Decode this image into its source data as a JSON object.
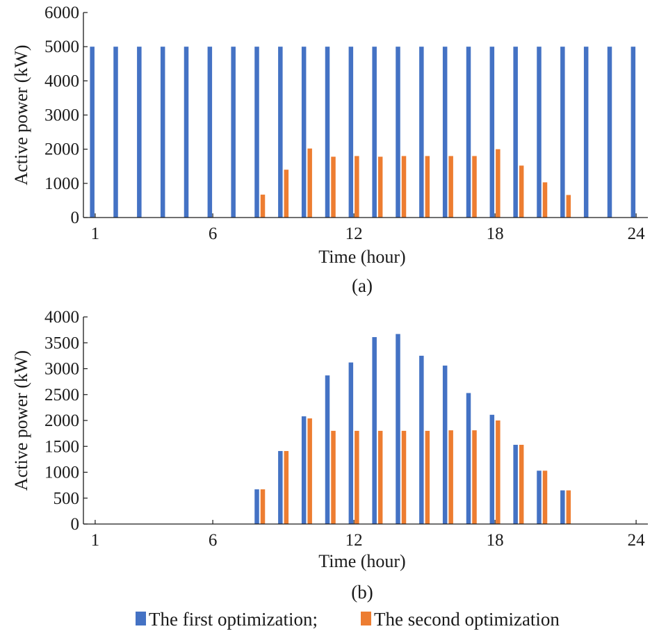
{
  "chart_data": [
    {
      "type": "bar",
      "caption": "(a)",
      "xlabel": "Time (hour)",
      "ylabel": "Active power (kW)",
      "ylim": [
        0,
        6000
      ],
      "yticks": [
        0,
        1000,
        2000,
        3000,
        4000,
        5000,
        6000
      ],
      "xlim": [
        0.5,
        24.5
      ],
      "xticks": [
        1,
        6,
        12,
        18,
        24
      ],
      "categories": [
        1,
        2,
        3,
        4,
        5,
        6,
        7,
        8,
        9,
        10,
        11,
        12,
        13,
        14,
        15,
        16,
        17,
        18,
        19,
        20,
        21,
        22,
        23,
        24
      ],
      "series": [
        {
          "name": "The first optimization",
          "color": "#4472C4",
          "values": [
            5000,
            5000,
            5000,
            5000,
            5000,
            5000,
            5000,
            5000,
            5000,
            5000,
            5000,
            5000,
            5000,
            5000,
            5000,
            5000,
            5000,
            5000,
            5000,
            5000,
            5000,
            5000,
            5000,
            5000
          ]
        },
        {
          "name": "The second optimization",
          "color": "#ED7D31",
          "values": [
            0,
            0,
            0,
            0,
            0,
            0,
            0,
            670,
            1400,
            2020,
            1780,
            1800,
            1780,
            1800,
            1800,
            1800,
            1800,
            2000,
            1520,
            1030,
            660,
            0,
            0,
            0
          ]
        }
      ]
    },
    {
      "type": "bar",
      "caption": "(b)",
      "xlabel": "Time (hour)",
      "ylabel": "Active power (kW)",
      "ylim": [
        0,
        4000
      ],
      "yticks": [
        0,
        500,
        1000,
        1500,
        2000,
        2500,
        3000,
        3500,
        4000
      ],
      "xlim": [
        0.5,
        24.5
      ],
      "xticks": [
        1,
        6,
        12,
        18,
        24
      ],
      "categories": [
        1,
        2,
        3,
        4,
        5,
        6,
        7,
        8,
        9,
        10,
        11,
        12,
        13,
        14,
        15,
        16,
        17,
        18,
        19,
        20,
        21,
        22,
        23,
        24
      ],
      "series": [
        {
          "name": "The first optimization",
          "color": "#4472C4",
          "values": [
            0,
            0,
            0,
            0,
            0,
            0,
            0,
            670,
            1410,
            2080,
            2870,
            3120,
            3610,
            3670,
            3250,
            3060,
            2530,
            2110,
            1530,
            1030,
            650,
            0,
            0,
            0
          ]
        },
        {
          "name": "The second optimization",
          "color": "#ED7D31",
          "values": [
            0,
            0,
            0,
            0,
            0,
            0,
            0,
            670,
            1410,
            2040,
            1800,
            1800,
            1800,
            1800,
            1800,
            1810,
            1810,
            2000,
            1530,
            1030,
            650,
            0,
            0,
            0
          ]
        }
      ]
    }
  ],
  "legend": {
    "items": [
      {
        "label": "The first optimization;",
        "color": "#4472C4",
        "icon": "blue-square"
      },
      {
        "label": "The second optimization",
        "color": "#ED7D31",
        "icon": "orange-square"
      }
    ]
  }
}
